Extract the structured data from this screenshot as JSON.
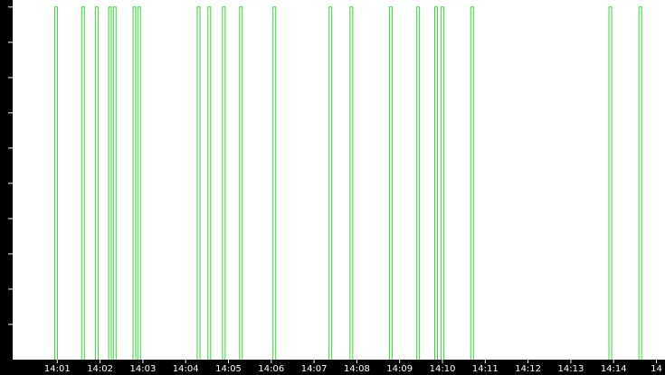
{
  "chart_data": {
    "type": "pulse",
    "x": [
      0.94,
      1.57,
      1.89,
      2.2,
      2.31,
      2.77,
      2.88,
      4.27,
      4.52,
      4.86,
      5.26,
      6.04,
      7.35,
      7.84,
      8.76,
      9.4,
      9.82,
      9.97,
      10.66,
      13.89,
      14.59
    ],
    "values": [
      1,
      1,
      1,
      1,
      1,
      1,
      1,
      1,
      1,
      1,
      1,
      1,
      1,
      1,
      1,
      1,
      1,
      1,
      1,
      1,
      1
    ],
    "color": "#33dd33",
    "xlim": [
      0,
      15.2
    ],
    "xticks": [
      {
        "value": 1,
        "label": "14:01"
      },
      {
        "value": 2,
        "label": "14:02"
      },
      {
        "value": 3,
        "label": "14:03"
      },
      {
        "value": 4,
        "label": "14:04"
      },
      {
        "value": 5,
        "label": "14:05"
      },
      {
        "value": 6,
        "label": "14:06"
      },
      {
        "value": 7,
        "label": "14:07"
      },
      {
        "value": 8,
        "label": "14:08"
      },
      {
        "value": 9,
        "label": "14:09"
      },
      {
        "value": 10,
        "label": "14:10"
      },
      {
        "value": 11,
        "label": "14:11"
      },
      {
        "value": 12,
        "label": "14:12"
      },
      {
        "value": 13,
        "label": "14:13"
      },
      {
        "value": 14,
        "label": "14:14"
      },
      {
        "value": 15,
        "label": "14"
      }
    ],
    "ylim": [
      0,
      1.02
    ],
    "yticks": [
      0.1,
      0.2,
      0.3,
      0.4,
      0.5,
      0.6,
      0.7,
      0.8,
      0.9,
      1
    ]
  }
}
